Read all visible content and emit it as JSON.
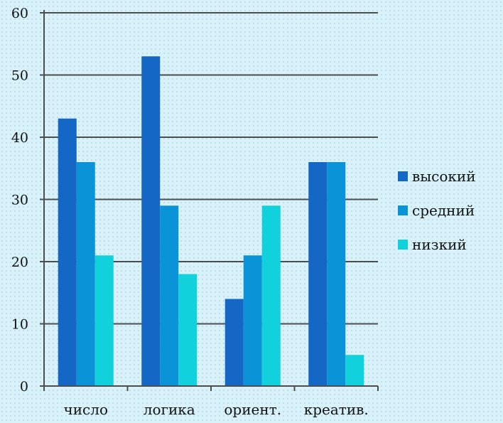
{
  "chart_data": {
    "type": "bar",
    "title": "",
    "xlabel": "",
    "ylabel": "",
    "ylim": [
      0,
      60
    ],
    "yticks": [
      0,
      10,
      20,
      30,
      40,
      50,
      60
    ],
    "categories": [
      "число",
      "логика",
      "ориент.",
      "креатив."
    ],
    "series": [
      {
        "name": "высокий",
        "color": "#1467c4",
        "values": [
          43,
          53,
          14,
          36
        ]
      },
      {
        "name": "средний",
        "color": "#0a93d6",
        "values": [
          36,
          29,
          21,
          36
        ]
      },
      {
        "name": "низкий",
        "color": "#11d1dc",
        "values": [
          21,
          18,
          29,
          5
        ]
      }
    ],
    "grid": true,
    "legend_position": "right"
  }
}
